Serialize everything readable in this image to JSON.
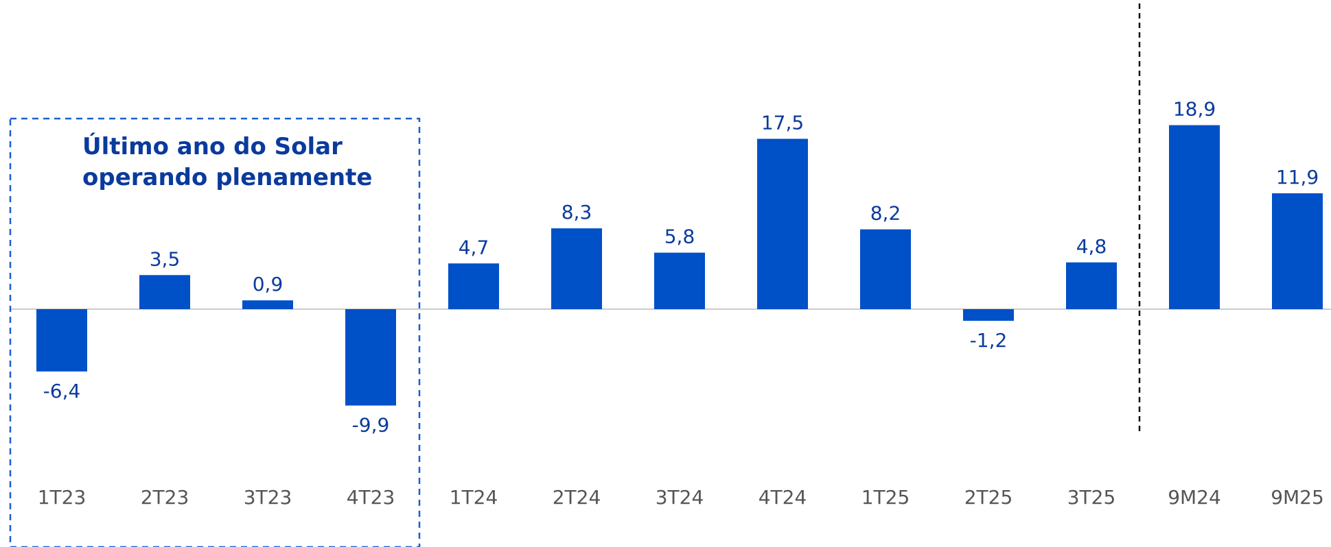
{
  "chart_data": {
    "type": "bar",
    "categories": [
      "1T23",
      "2T23",
      "3T23",
      "4T23",
      "1T24",
      "2T24",
      "3T24",
      "4T24",
      "1T25",
      "2T25",
      "3T25",
      "9M24",
      "9M25"
    ],
    "values": [
      -6.4,
      3.5,
      0.9,
      -9.9,
      4.7,
      8.3,
      5.8,
      17.5,
      8.2,
      -1.2,
      4.8,
      18.9,
      11.9
    ],
    "value_labels": [
      "-6,4",
      "3,5",
      "0,9",
      "-9,9",
      "4,7",
      "8,3",
      "5,8",
      "17,5",
      "8,2",
      "-1,2",
      "4,8",
      "18,9",
      "11,9"
    ],
    "title": "",
    "xlabel": "",
    "ylabel": "",
    "grid": false,
    "annotation": {
      "line1": "Último ano do Solar",
      "line2": "operando plenamente",
      "highlight_categories": [
        "1T23",
        "2T23",
        "3T23",
        "4T23"
      ]
    },
    "separator_before": "9M24",
    "colors": {
      "bar": "#0050c8",
      "value_label": "#0a3a9c",
      "tick_label": "#555555",
      "baseline": "#cccccc",
      "highlight_box": "#1a5fd0",
      "separator": "#111111"
    }
  }
}
